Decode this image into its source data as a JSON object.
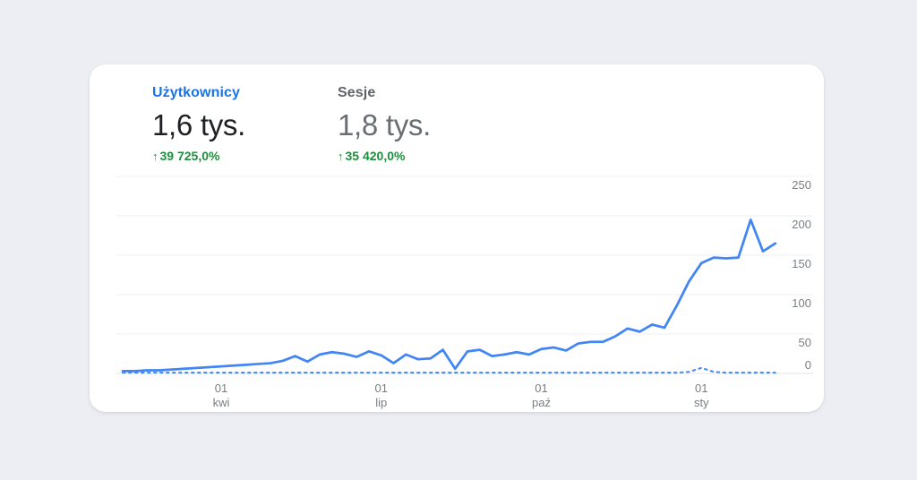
{
  "page": {
    "background_color": "#eceef4",
    "card_background": "#ffffff"
  },
  "metrics": [
    {
      "label": "Użytkownicy",
      "value": "1,6 tys.",
      "arrow": "↑",
      "change": "39 725,0%",
      "label_color": "#1a73e8",
      "value_color": "#202124",
      "change_color": "#1e8e3e",
      "selected": true
    },
    {
      "label": "Sesje",
      "value": "1,8 tys.",
      "arrow": "↑",
      "change": "35 420,0%",
      "label_color": "#5f6368",
      "value_color": "#696e73",
      "change_color": "#1e8e3e",
      "selected": false
    }
  ],
  "chart_data": {
    "type": "line",
    "title": "",
    "x_unit": "week",
    "grid": true,
    "legend_position": "none",
    "y_axis": {
      "side": "right",
      "range": [
        0,
        250
      ],
      "ticks": [
        0,
        50,
        100,
        150,
        200,
        250
      ],
      "tick_color": "#7a7e83"
    },
    "x_axis": {
      "tick_labels": [
        {
          "index": 8,
          "day": "01",
          "month": "kwi"
        },
        {
          "index": 21,
          "day": "01",
          "month": "lip"
        },
        {
          "index": 34,
          "day": "01",
          "month": "paź"
        },
        {
          "index": 47,
          "day": "01",
          "month": "sty"
        }
      ]
    },
    "series": [
      {
        "key": "comparison-dashed-line",
        "name": "linia przerywana (poziom odniesienia)",
        "style": "dashed",
        "color": "#4285f4",
        "values": [
          1,
          1,
          1,
          1,
          1,
          1,
          1,
          1,
          1,
          1,
          1,
          1,
          1,
          1,
          1,
          1,
          1,
          1,
          1,
          1,
          1,
          1,
          1,
          1,
          1,
          1,
          1,
          1,
          1,
          1,
          1,
          1,
          1,
          1,
          1,
          1,
          1,
          1,
          1,
          1,
          1,
          1,
          1,
          1,
          1,
          1,
          2,
          7,
          2,
          1,
          1,
          1,
          1,
          1
        ]
      },
      {
        "key": "users-solid-line",
        "name": "Użytkownicy",
        "style": "solid",
        "color": "#4285f4",
        "values": [
          3,
          3,
          4,
          4,
          5,
          6,
          7,
          8,
          9,
          10,
          11,
          12,
          13,
          16,
          22,
          15,
          24,
          27,
          25,
          21,
          28,
          23,
          13,
          24,
          18,
          19,
          30,
          6,
          28,
          30,
          22,
          24,
          27,
          24,
          31,
          33,
          29,
          38,
          40,
          40,
          47,
          57,
          53,
          62,
          58,
          86,
          117,
          140,
          147,
          146,
          147,
          195,
          155,
          165
        ]
      }
    ],
    "grid_color": "#efefef",
    "axis_line_color": "#e3e3e3"
  }
}
